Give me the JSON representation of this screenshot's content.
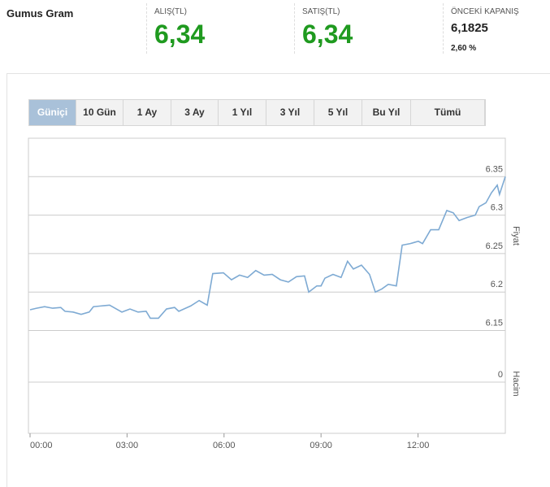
{
  "header": {
    "title": "Gumus Gram",
    "bid_label": "ALIŞ(TL)",
    "bid": "6,34",
    "ask_label": "SATIŞ(TL)",
    "ask": "6,34",
    "prev_close_label": "ÖNCEKİ KAPANIŞ",
    "prev_close": "6,1825",
    "change": "2,60 %"
  },
  "tabs": [
    "Güniçi",
    "10 Gün",
    "1 Ay",
    "3 Ay",
    "1 Yıl",
    "3 Yıl",
    "5 Yıl",
    "Bu Yıl",
    "Tümü"
  ],
  "chart_data": {
    "type": "line",
    "y_label": "Fiyat",
    "volume_label": "Hacim",
    "x": [
      0,
      0.2,
      0.45,
      0.7,
      0.95,
      1.08,
      1.33,
      1.58,
      1.83,
      1.96,
      2.21,
      2.46,
      2.71,
      2.84,
      3.09,
      3.34,
      3.59,
      3.72,
      3.97,
      4.22,
      4.47,
      4.6,
      4.97,
      5.23,
      5.48,
      5.65,
      5.98,
      6.23,
      6.48,
      6.73,
      6.98,
      7.24,
      7.49,
      7.74,
      7.99,
      8.24,
      8.49,
      8.62,
      8.87,
      9.0,
      9.12,
      9.37,
      9.62,
      9.82,
      10.0,
      10.25,
      10.5,
      10.68,
      10.88,
      11.08,
      11.33,
      11.51,
      11.76,
      12.01,
      12.14,
      12.39,
      12.64,
      12.89,
      13.09,
      13.27,
      13.52,
      13.77,
      13.89,
      14.1,
      14.27,
      14.45,
      14.52,
      14.7
    ],
    "series": [
      {
        "color": "#7eaad3",
        "values": [
          6.177,
          6.179,
          6.181,
          6.179,
          6.18,
          6.175,
          6.174,
          6.171,
          6.174,
          6.181,
          6.182,
          6.183,
          6.177,
          6.174,
          6.178,
          6.174,
          6.175,
          6.166,
          6.166,
          6.178,
          6.18,
          6.175,
          6.182,
          6.189,
          6.183,
          6.224,
          6.225,
          6.216,
          6.222,
          6.219,
          6.228,
          6.222,
          6.223,
          6.216,
          6.213,
          6.22,
          6.221,
          6.2,
          6.208,
          6.208,
          6.218,
          6.223,
          6.219,
          6.24,
          6.23,
          6.235,
          6.223,
          6.2,
          6.204,
          6.21,
          6.208,
          6.261,
          6.263,
          6.266,
          6.263,
          6.281,
          6.281,
          6.306,
          6.303,
          6.293,
          6.297,
          6.3,
          6.311,
          6.316,
          6.329,
          6.339,
          6.327,
          6.35
        ]
      }
    ],
    "xlim": [
      0,
      14.7
    ],
    "xticks": [
      {
        "value": 0,
        "label": "00:00"
      },
      {
        "value": 3,
        "label": "03:00"
      },
      {
        "value": 6,
        "label": "06:00"
      },
      {
        "value": 9,
        "label": "09:00"
      },
      {
        "value": 12,
        "label": "12:00"
      }
    ],
    "ylim": [
      6.14,
      6.4
    ],
    "yticks": [
      6.35,
      6.3,
      6.25,
      6.2,
      6.15
    ],
    "volume_ylim": [
      0,
      1
    ],
    "volume_yticks": [
      0
    ],
    "grid": true
  }
}
